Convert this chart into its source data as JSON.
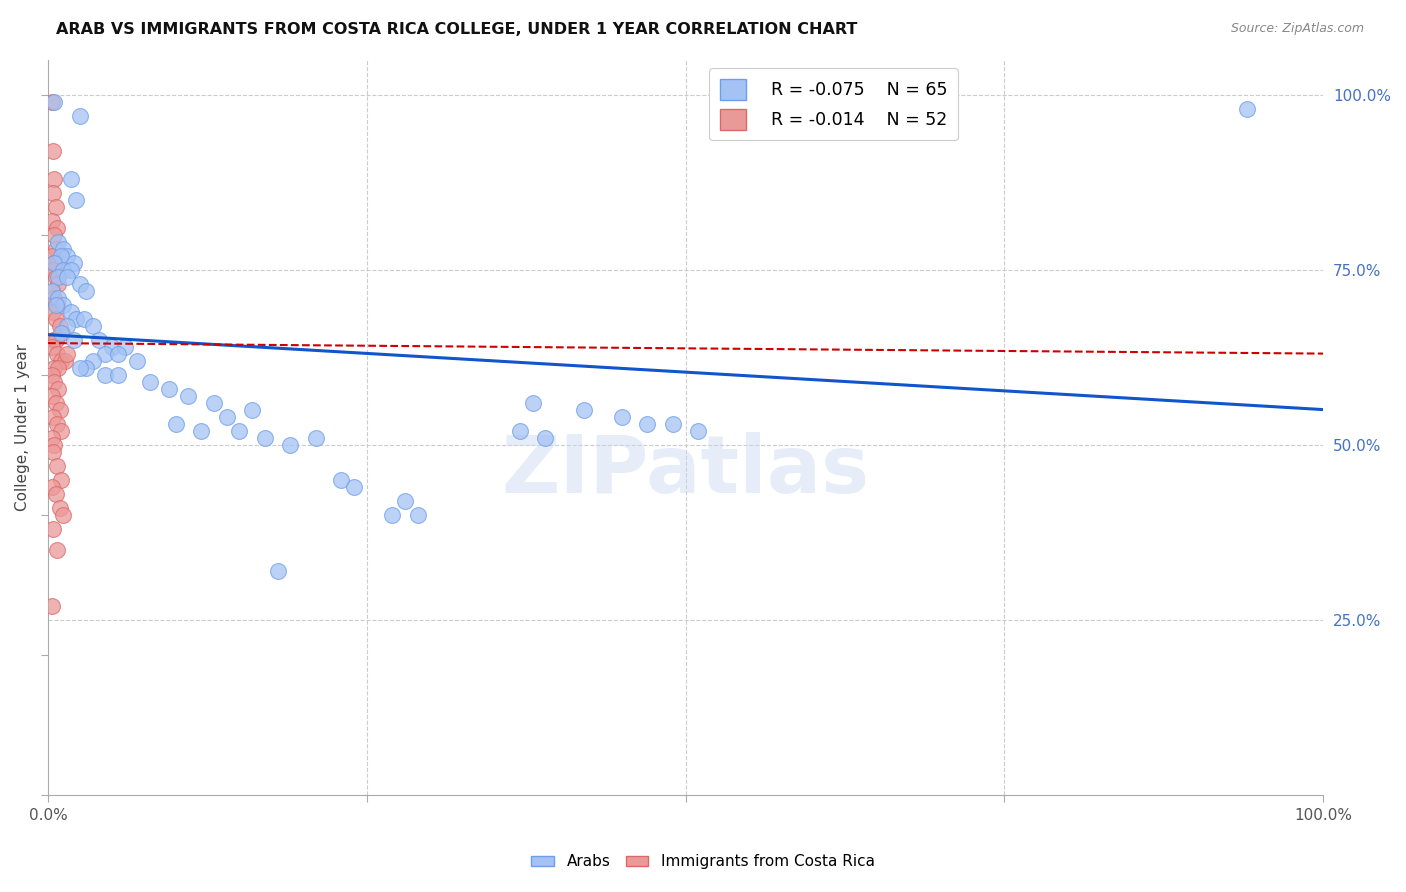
{
  "title": "ARAB VS IMMIGRANTS FROM COSTA RICA COLLEGE, UNDER 1 YEAR CORRELATION CHART",
  "source": "Source: ZipAtlas.com",
  "ylabel": "College, Under 1 year",
  "legend_blue_r": "R = -0.075",
  "legend_blue_n": "N = 65",
  "legend_pink_r": "R = -0.014",
  "legend_pink_n": "N = 52",
  "legend_label_blue": "Arabs",
  "legend_label_pink": "Immigrants from Costa Rica",
  "watermark": "ZIPatlas",
  "blue_color": "#a4c2f4",
  "pink_color": "#ea9999",
  "blue_edge_color": "#6d9eeb",
  "pink_edge_color": "#e06666",
  "blue_line_color": "#1155cc",
  "pink_line_color": "#cc0000",
  "blue_scatter": [
    [
      0.005,
      0.99
    ],
    [
      0.025,
      0.97
    ],
    [
      0.018,
      0.88
    ],
    [
      0.022,
      0.85
    ],
    [
      0.008,
      0.79
    ],
    [
      0.012,
      0.78
    ],
    [
      0.015,
      0.77
    ],
    [
      0.01,
      0.77
    ],
    [
      0.02,
      0.76
    ],
    [
      0.005,
      0.76
    ],
    [
      0.012,
      0.75
    ],
    [
      0.018,
      0.75
    ],
    [
      0.008,
      0.74
    ],
    [
      0.015,
      0.74
    ],
    [
      0.025,
      0.73
    ],
    [
      0.03,
      0.72
    ],
    [
      0.003,
      0.72
    ],
    [
      0.008,
      0.71
    ],
    [
      0.012,
      0.7
    ],
    [
      0.006,
      0.7
    ],
    [
      0.018,
      0.69
    ],
    [
      0.022,
      0.68
    ],
    [
      0.028,
      0.68
    ],
    [
      0.015,
      0.67
    ],
    [
      0.035,
      0.67
    ],
    [
      0.01,
      0.66
    ],
    [
      0.02,
      0.65
    ],
    [
      0.04,
      0.65
    ],
    [
      0.05,
      0.64
    ],
    [
      0.06,
      0.64
    ],
    [
      0.045,
      0.63
    ],
    [
      0.055,
      0.63
    ],
    [
      0.07,
      0.62
    ],
    [
      0.035,
      0.62
    ],
    [
      0.03,
      0.61
    ],
    [
      0.025,
      0.61
    ],
    [
      0.045,
      0.6
    ],
    [
      0.055,
      0.6
    ],
    [
      0.08,
      0.59
    ],
    [
      0.095,
      0.58
    ],
    [
      0.11,
      0.57
    ],
    [
      0.13,
      0.56
    ],
    [
      0.16,
      0.55
    ],
    [
      0.14,
      0.54
    ],
    [
      0.1,
      0.53
    ],
    [
      0.12,
      0.52
    ],
    [
      0.15,
      0.52
    ],
    [
      0.17,
      0.51
    ],
    [
      0.21,
      0.51
    ],
    [
      0.19,
      0.5
    ],
    [
      0.38,
      0.56
    ],
    [
      0.42,
      0.55
    ],
    [
      0.45,
      0.54
    ],
    [
      0.47,
      0.53
    ],
    [
      0.49,
      0.53
    ],
    [
      0.51,
      0.52
    ],
    [
      0.37,
      0.52
    ],
    [
      0.39,
      0.51
    ],
    [
      0.23,
      0.45
    ],
    [
      0.24,
      0.44
    ],
    [
      0.28,
      0.42
    ],
    [
      0.27,
      0.4
    ],
    [
      0.29,
      0.4
    ],
    [
      0.18,
      0.32
    ],
    [
      0.94,
      0.98
    ]
  ],
  "pink_scatter": [
    [
      0.003,
      0.99
    ],
    [
      0.004,
      0.92
    ],
    [
      0.005,
      0.88
    ],
    [
      0.004,
      0.86
    ],
    [
      0.006,
      0.84
    ],
    [
      0.003,
      0.82
    ],
    [
      0.007,
      0.81
    ],
    [
      0.005,
      0.8
    ],
    [
      0.006,
      0.78
    ],
    [
      0.003,
      0.77
    ],
    [
      0.005,
      0.76
    ],
    [
      0.007,
      0.76
    ],
    [
      0.004,
      0.75
    ],
    [
      0.006,
      0.74
    ],
    [
      0.008,
      0.73
    ],
    [
      0.003,
      0.72
    ],
    [
      0.005,
      0.71
    ],
    [
      0.007,
      0.7
    ],
    [
      0.004,
      0.69
    ],
    [
      0.006,
      0.68
    ],
    [
      0.009,
      0.67
    ],
    [
      0.011,
      0.66
    ],
    [
      0.004,
      0.65
    ],
    [
      0.006,
      0.65
    ],
    [
      0.003,
      0.64
    ],
    [
      0.007,
      0.63
    ],
    [
      0.01,
      0.62
    ],
    [
      0.013,
      0.62
    ],
    [
      0.005,
      0.61
    ],
    [
      0.008,
      0.61
    ],
    [
      0.003,
      0.6
    ],
    [
      0.005,
      0.59
    ],
    [
      0.008,
      0.58
    ],
    [
      0.003,
      0.57
    ],
    [
      0.006,
      0.56
    ],
    [
      0.009,
      0.55
    ],
    [
      0.004,
      0.54
    ],
    [
      0.007,
      0.53
    ],
    [
      0.01,
      0.52
    ],
    [
      0.003,
      0.51
    ],
    [
      0.005,
      0.5
    ],
    [
      0.004,
      0.49
    ],
    [
      0.007,
      0.47
    ],
    [
      0.01,
      0.45
    ],
    [
      0.003,
      0.44
    ],
    [
      0.006,
      0.43
    ],
    [
      0.009,
      0.41
    ],
    [
      0.012,
      0.4
    ],
    [
      0.004,
      0.38
    ],
    [
      0.007,
      0.35
    ],
    [
      0.003,
      0.27
    ],
    [
      0.015,
      0.63
    ]
  ],
  "xlim": [
    0.0,
    1.0
  ],
  "ylim": [
    0.0,
    1.05
  ],
  "blue_trend_x": [
    0.0,
    1.0
  ],
  "blue_trend_y": [
    0.657,
    0.55
  ],
  "pink_trend_x": [
    0.0,
    1.0
  ],
  "pink_trend_y": [
    0.645,
    0.63
  ]
}
